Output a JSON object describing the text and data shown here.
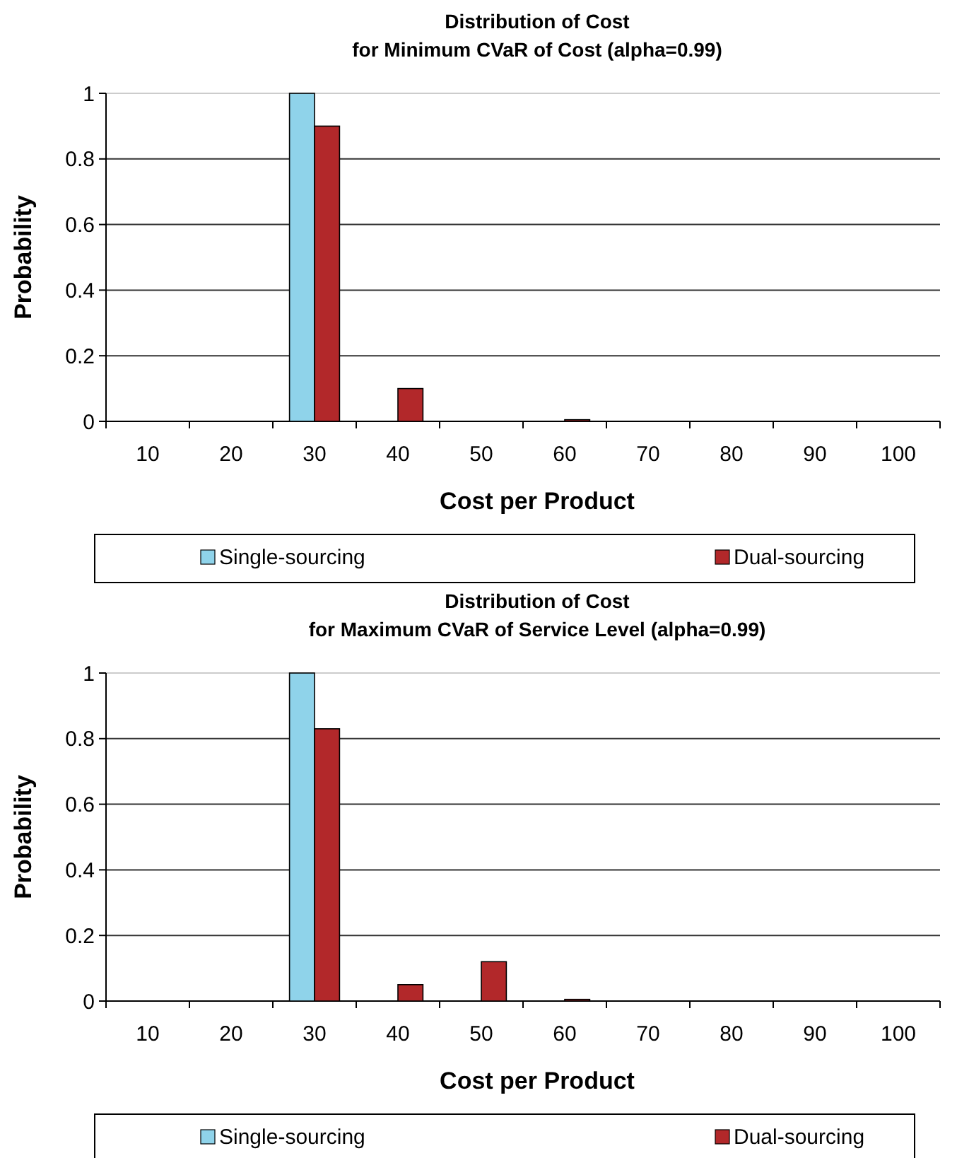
{
  "chart_data": [
    {
      "type": "bar",
      "title": "Distribution of Cost\nfor Minimum CVaR of Cost (alpha=0.99)",
      "xlabel": "Cost per Product",
      "ylabel": "Probability",
      "categories": [
        "10",
        "20",
        "30",
        "40",
        "50",
        "60",
        "70",
        "80",
        "90",
        "100"
      ],
      "series": [
        {
          "name": "Single-sourcing",
          "color": "#8fd3ea",
          "values": [
            0,
            0,
            1,
            0,
            0,
            0,
            0,
            0,
            0,
            0
          ]
        },
        {
          "name": "Dual-sourcing",
          "color": "#b2282a",
          "values": [
            0,
            0,
            0.9,
            0.1,
            0,
            0.005,
            0,
            0,
            0,
            0
          ]
        }
      ],
      "ylim": [
        0,
        1
      ],
      "yticks": [
        0,
        0.2,
        0.4,
        0.6,
        0.8,
        1
      ],
      "grid": "y",
      "legend": "bottom"
    },
    {
      "type": "bar",
      "title": "Distribution of Cost\nfor Maximum CVaR of Service Level (alpha=0.99)",
      "xlabel": "Cost per Product",
      "ylabel": "Probability",
      "categories": [
        "10",
        "20",
        "30",
        "40",
        "50",
        "60",
        "70",
        "80",
        "90",
        "100"
      ],
      "series": [
        {
          "name": "Single-sourcing",
          "color": "#8fd3ea",
          "values": [
            0,
            0,
            1,
            0,
            0,
            0,
            0,
            0,
            0,
            0
          ]
        },
        {
          "name": "Dual-sourcing",
          "color": "#b2282a",
          "values": [
            0,
            0,
            0.83,
            0.05,
            0.12,
            0.005,
            0,
            0,
            0,
            0
          ]
        }
      ],
      "ylim": [
        0,
        1
      ],
      "yticks": [
        0,
        0.2,
        0.4,
        0.6,
        0.8,
        1
      ],
      "grid": "y",
      "legend": "bottom"
    }
  ]
}
